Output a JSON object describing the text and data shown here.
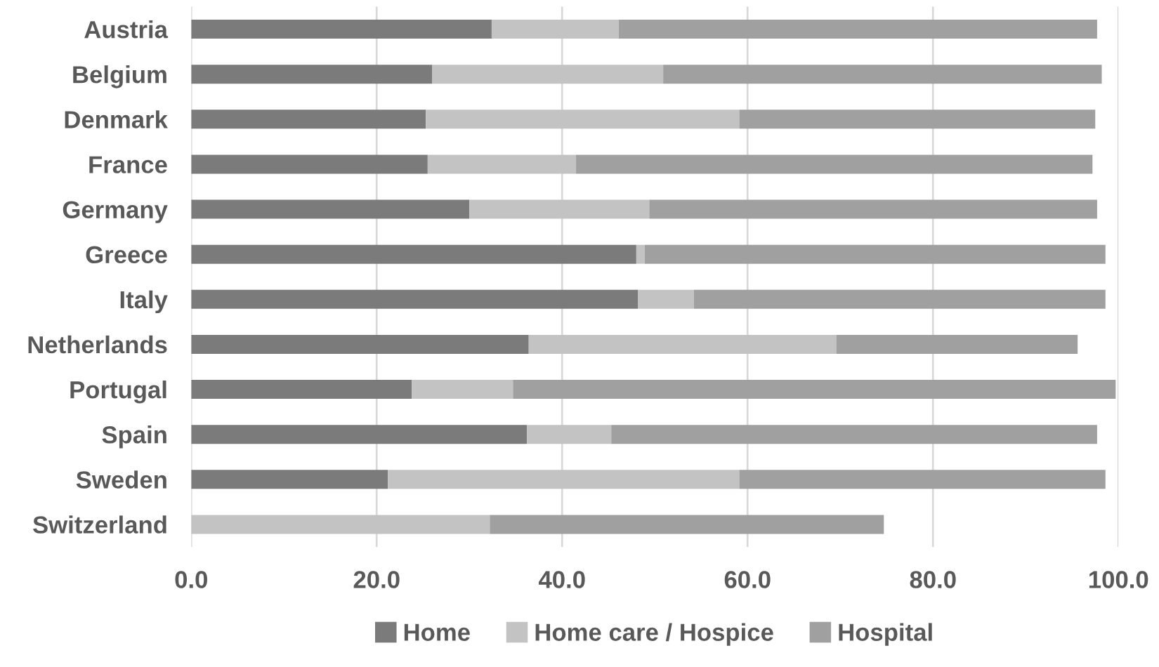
{
  "chart_data": {
    "type": "bar",
    "orientation": "horizontal",
    "stacked": true,
    "categories": [
      "Austria",
      "Belgium",
      "Denmark",
      "France",
      "Germany",
      "Greece",
      "Italy",
      "Netherlands",
      "Portugal",
      "Spain",
      "Sweden",
      "Switzerland"
    ],
    "series": [
      {
        "name": "Home",
        "color": "#7b7b7b",
        "values": [
          32.4,
          26.0,
          25.3,
          25.5,
          30.0,
          48.0,
          48.2,
          36.4,
          23.8,
          36.2,
          21.2,
          null
        ]
      },
      {
        "name": "Home care / Hospice",
        "color": "#c3c3c3",
        "values": [
          13.7,
          24.9,
          33.8,
          16.0,
          19.4,
          0.9,
          6.0,
          33.2,
          10.9,
          9.1,
          37.9,
          32.2
        ]
      },
      {
        "name": "Hospital",
        "color": "#a0a0a0",
        "values": [
          51.6,
          47.3,
          38.4,
          55.7,
          48.3,
          49.7,
          44.4,
          26.0,
          65.0,
          52.4,
          39.5,
          42.5
        ]
      }
    ],
    "xlim": [
      0,
      100
    ],
    "xticks": [
      {
        "value": 0,
        "label": "0.0"
      },
      {
        "value": 20,
        "label": "20.0"
      },
      {
        "value": 40,
        "label": "40.0"
      },
      {
        "value": 60,
        "label": "60.0"
      },
      {
        "value": 80,
        "label": "80.0"
      },
      {
        "value": 100,
        "label": "100.0"
      }
    ],
    "grid": "x",
    "legend": "bottom"
  }
}
